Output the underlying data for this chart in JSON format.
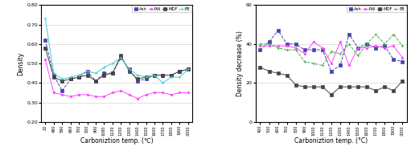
{
  "left": {
    "xlabels": [
      "20",
      "480",
      "590",
      "693",
      "700",
      "800",
      "900",
      "1080",
      "1100",
      "1200",
      "1300",
      "1400",
      "1500",
      "1600",
      "1700",
      "1800",
      "1900",
      "2000"
    ],
    "Ash": [
      0.62,
      0.44,
      0.36,
      0.42,
      0.43,
      0.46,
      0.41,
      0.45,
      0.45,
      0.53,
      0.47,
      0.41,
      0.42,
      0.44,
      0.44,
      0.44,
      0.46,
      0.47
    ],
    "PW": [
      0.52,
      0.35,
      0.34,
      0.33,
      0.34,
      0.34,
      0.33,
      0.33,
      0.35,
      0.36,
      0.34,
      0.32,
      0.34,
      0.35,
      0.35,
      0.34,
      0.35,
      0.35
    ],
    "MDF": [
      0.58,
      0.43,
      0.41,
      0.42,
      0.43,
      0.44,
      0.41,
      0.44,
      0.45,
      0.54,
      0.46,
      0.42,
      0.43,
      0.44,
      0.44,
      0.44,
      0.46,
      0.47
    ],
    "FB": [
      0.73,
      0.45,
      0.42,
      0.43,
      0.44,
      0.46,
      0.45,
      0.48,
      0.5,
      0.53,
      0.47,
      0.44,
      0.43,
      0.44,
      0.4,
      0.43,
      0.43,
      0.47
    ],
    "ylim": [
      0.2,
      0.8
    ],
    "yticks": [
      0.2,
      0.3,
      0.4,
      0.5,
      0.6,
      0.7,
      0.8
    ],
    "ytick_labels": [
      "0.20",
      "0.30",
      "0.40",
      "0.50",
      "0.60",
      "0.70",
      "0.80"
    ],
    "ylabel": "Density",
    "xlabel": "Carboniztion temp. (℃)",
    "series": [
      "Ash",
      "PW",
      "MDF",
      "FB"
    ],
    "colors": {
      "Ash": "#4444aa",
      "PW": "#ff44ff",
      "MDF": "#444444",
      "FB": "#44cccc"
    },
    "markers": {
      "Ash": "s",
      "PW": "*",
      "MDF": "s",
      "FB": "+"
    },
    "linestyles": {
      "Ash": "--",
      "PW": "-",
      "MDF": "-",
      "FB": "-"
    }
  },
  "right": {
    "xlabels": [
      "400",
      "500",
      "600",
      "700",
      "800",
      "900",
      "1000",
      "1100",
      "1200",
      "1300",
      "1400",
      "1500",
      "1600",
      "1700",
      "1800",
      "1900",
      "2000"
    ],
    "Ash": [
      37,
      41,
      47,
      40,
      40,
      37,
      37,
      37,
      26,
      29,
      45,
      38,
      40,
      38,
      39,
      32,
      31
    ],
    "PW": [
      39,
      39,
      39,
      39,
      38,
      35,
      41,
      38,
      30,
      41,
      29,
      38,
      38,
      39,
      38,
      39,
      33
    ],
    "MDF": [
      28,
      26,
      25,
      24,
      19,
      18,
      18,
      18,
      14,
      18,
      18,
      18,
      18,
      16,
      18,
      16,
      21
    ],
    "PB": [
      40,
      40,
      38,
      37,
      37,
      31,
      30,
      29,
      36,
      35,
      40,
      34,
      40,
      45,
      40,
      45,
      39
    ],
    "ylim": [
      0,
      60
    ],
    "yticks": [
      0,
      20,
      40,
      60
    ],
    "ytick_labels": [
      "0",
      "20",
      "40",
      "60"
    ],
    "ylabel": "Density decrease (%)",
    "xlabel": "Carboniztion temp. (°C)",
    "series": [
      "Ash",
      "PW",
      "MDF",
      "PB"
    ],
    "colors": {
      "Ash": "#4444aa",
      "PW": "#ff44ff",
      "MDF": "#444444",
      "PB": "#44aa44"
    },
    "markers": {
      "Ash": "s",
      "PW": "*",
      "MDF": "s",
      "PB": "+"
    },
    "linestyles": {
      "Ash": "--",
      "PW": "-",
      "MDF": "-",
      "PB": "--"
    }
  }
}
